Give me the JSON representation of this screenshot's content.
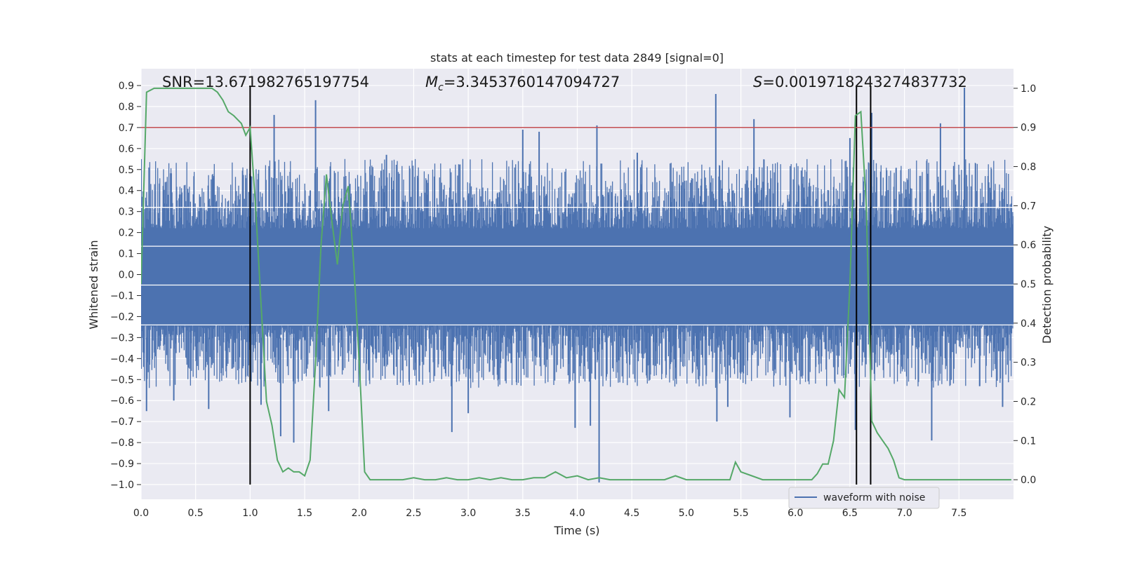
{
  "colors": {
    "plot_bg": "#EAEAF2",
    "grid": "#FFFFFF",
    "waveform": "#4C72B0",
    "probability": "#55A868",
    "threshold": "#C44E52",
    "markers": "#000000"
  },
  "chart_data": {
    "type": "line",
    "title": "stats at each timestep for test data 2849 [signal=0]",
    "xlabel": "Time (s)",
    "ylabel_left": "Whitened strain",
    "ylabel_right": "Detection probability",
    "xlim": [
      0.0,
      8.0
    ],
    "ylim_left": [
      -1.07,
      0.98
    ],
    "ylim_right": [
      -0.05,
      1.05
    ],
    "x_ticks": [
      "0.0",
      "0.5",
      "1.0",
      "1.5",
      "2.0",
      "2.5",
      "3.0",
      "3.5",
      "4.0",
      "4.5",
      "5.0",
      "5.5",
      "6.0",
      "6.5",
      "7.0",
      "7.5"
    ],
    "y_ticks_left": [
      "0.9",
      "0.8",
      "0.7",
      "0.6",
      "0.5",
      "0.4",
      "0.3",
      "0.2",
      "0.1",
      "0.0",
      "-0.1",
      "-0.2",
      "-0.3",
      "-0.4",
      "-0.5",
      "-0.6",
      "-0.7",
      "-0.8",
      "-0.9",
      "-1.0"
    ],
    "y_ticks_right": [
      "1.0",
      "0.9",
      "0.8",
      "0.7",
      "0.6",
      "0.5",
      "0.4",
      "0.3",
      "0.2",
      "0.1",
      "0.0"
    ],
    "annotations": {
      "snr": "SNR=13.671982765197754",
      "mc_symbol": "M",
      "mc_sub": "c",
      "mc_value": "=3.3453760147094727",
      "s_symbol": "S",
      "s_value": "=0.0019718243274837732"
    },
    "legend": {
      "label": "waveform with noise",
      "location": "lower-right"
    },
    "threshold_probability": 0.9,
    "vertical_lines_x": [
      1.0,
      6.56,
      6.69
    ],
    "series": [
      {
        "name": "waveform with noise",
        "axis": "left",
        "description": "noise strain, roughly within ±0.5 with spikes",
        "spikes": [
          {
            "x": 0.05,
            "y": -0.65
          },
          {
            "x": 0.3,
            "y": -0.6
          },
          {
            "x": 0.62,
            "y": -0.64
          },
          {
            "x": 1.1,
            "y": -0.62
          },
          {
            "x": 1.22,
            "y": 0.76
          },
          {
            "x": 1.28,
            "y": -0.77
          },
          {
            "x": 1.4,
            "y": -0.8
          },
          {
            "x": 1.6,
            "y": 0.83
          },
          {
            "x": 1.72,
            "y": -0.65
          },
          {
            "x": 2.25,
            "y": 0.57
          },
          {
            "x": 2.85,
            "y": -0.75
          },
          {
            "x": 3.0,
            "y": -0.66
          },
          {
            "x": 3.5,
            "y": 0.69
          },
          {
            "x": 3.65,
            "y": 0.68
          },
          {
            "x": 3.98,
            "y": -0.73
          },
          {
            "x": 4.12,
            "y": -0.72
          },
          {
            "x": 4.18,
            "y": 0.71
          },
          {
            "x": 4.2,
            "y": -0.99
          },
          {
            "x": 4.55,
            "y": 0.58
          },
          {
            "x": 5.27,
            "y": 0.86
          },
          {
            "x": 5.28,
            "y": -0.7
          },
          {
            "x": 5.38,
            "y": -0.63
          },
          {
            "x": 5.62,
            "y": 0.74
          },
          {
            "x": 5.95,
            "y": -0.68
          },
          {
            "x": 6.5,
            "y": 0.65
          },
          {
            "x": 6.55,
            "y": -0.74
          },
          {
            "x": 6.7,
            "y": 0.77
          },
          {
            "x": 7.25,
            "y": -0.79
          },
          {
            "x": 7.55,
            "y": 0.89
          },
          {
            "x": 7.33,
            "y": 0.72
          },
          {
            "x": 7.9,
            "y": -0.63
          }
        ]
      },
      {
        "name": "detection probability",
        "axis": "right",
        "x": [
          0.0,
          0.05,
          0.12,
          0.2,
          0.3,
          0.4,
          0.5,
          0.6,
          0.65,
          0.7,
          0.75,
          0.8,
          0.85,
          0.92,
          0.96,
          1.0,
          1.05,
          1.1,
          1.15,
          1.2,
          1.25,
          1.3,
          1.35,
          1.4,
          1.45,
          1.5,
          1.55,
          1.6,
          1.65,
          1.7,
          1.75,
          1.8,
          1.85,
          1.9,
          1.95,
          2.0,
          2.05,
          2.1,
          2.15,
          2.2,
          2.3,
          2.4,
          2.5,
          2.6,
          2.7,
          2.8,
          2.9,
          3.0,
          3.1,
          3.2,
          3.3,
          3.4,
          3.5,
          3.6,
          3.7,
          3.8,
          3.9,
          4.0,
          4.1,
          4.2,
          4.3,
          4.4,
          4.5,
          4.6,
          4.7,
          4.8,
          4.9,
          5.0,
          5.1,
          5.2,
          5.3,
          5.4,
          5.45,
          5.5,
          5.6,
          5.7,
          5.8,
          5.9,
          6.0,
          6.1,
          6.15,
          6.2,
          6.25,
          6.3,
          6.35,
          6.4,
          6.45,
          6.5,
          6.55,
          6.6,
          6.65,
          6.7,
          6.75,
          6.8,
          6.85,
          6.9,
          6.95,
          7.0,
          7.05,
          7.1,
          7.2,
          7.3,
          7.4,
          7.5,
          7.6,
          7.7,
          7.8,
          7.98
        ],
        "y": [
          0.5,
          0.99,
          1.0,
          1.0,
          1.0,
          1.0,
          1.0,
          1.0,
          1.0,
          0.99,
          0.97,
          0.94,
          0.93,
          0.91,
          0.88,
          0.9,
          0.7,
          0.45,
          0.2,
          0.14,
          0.05,
          0.02,
          0.03,
          0.02,
          0.02,
          0.01,
          0.05,
          0.3,
          0.6,
          0.78,
          0.66,
          0.55,
          0.7,
          0.75,
          0.55,
          0.3,
          0.02,
          0.0,
          0.0,
          0.0,
          0.0,
          0.0,
          0.005,
          0.0,
          0.0,
          0.005,
          0.0,
          0.0,
          0.005,
          0.0,
          0.005,
          0.0,
          0.0,
          0.005,
          0.005,
          0.02,
          0.005,
          0.01,
          0.0,
          0.005,
          0.0,
          0.0,
          0.0,
          0.0,
          0.0,
          0.0,
          0.01,
          0.0,
          0.0,
          0.0,
          0.0,
          0.0,
          0.045,
          0.02,
          0.01,
          0.0,
          0.0,
          0.0,
          0.0,
          0.0,
          0.0,
          0.015,
          0.04,
          0.04,
          0.1,
          0.23,
          0.21,
          0.5,
          0.93,
          0.94,
          0.7,
          0.15,
          0.12,
          0.1,
          0.08,
          0.05,
          0.005,
          0.0,
          0.0,
          0.0,
          0.0,
          0.0,
          0.0,
          0.0,
          0.0,
          0.0,
          0.0,
          0.0
        ]
      }
    ]
  }
}
